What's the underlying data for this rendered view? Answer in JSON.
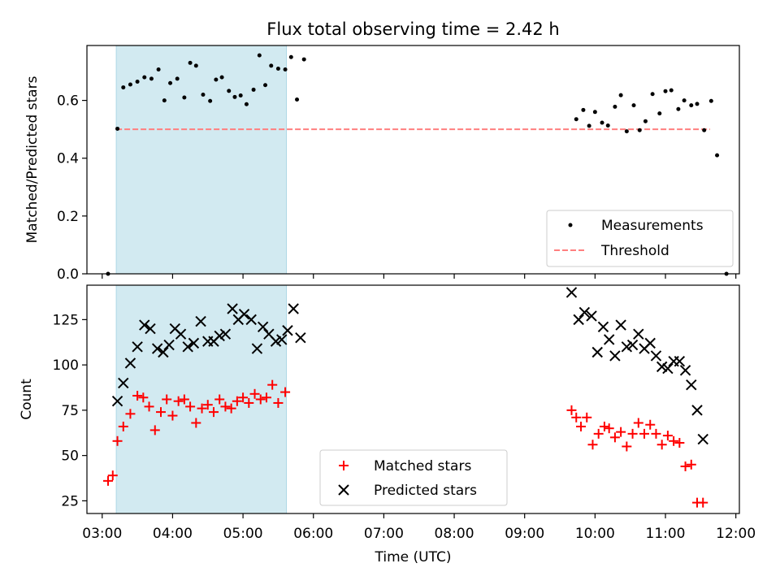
{
  "figure": {
    "title": "Flux total observing time = 2.42 h"
  },
  "colors": {
    "shade": "#add8e6",
    "measurements": "#000000",
    "threshold": "#ff7f7f",
    "matched": "#ff0000",
    "predicted": "#000000"
  },
  "chart_data": [
    {
      "type": "scatter",
      "ylabel": "Matched/Predicted stars",
      "xlim": [
        "02:47",
        "12:03"
      ],
      "ylim": [
        0,
        0.79
      ],
      "yticks": [
        "0.0",
        "0.2",
        "0.4",
        "0.6"
      ],
      "shaded_interval": [
        "03:12",
        "05:37"
      ],
      "legend": {
        "position": "lower right",
        "entries": [
          "Measurements",
          "Threshold"
        ]
      },
      "threshold": {
        "name": "Threshold",
        "value": 0.5,
        "x_start": "03:12",
        "x_end": "11:38"
      },
      "series": [
        {
          "name": "Measurements",
          "marker": "dot",
          "points": [
            [
              "03:05",
              0.0
            ],
            [
              "03:13",
              0.502
            ],
            [
              "03:18",
              0.645
            ],
            [
              "03:24",
              0.655
            ],
            [
              "03:30",
              0.665
            ],
            [
              "03:36",
              0.68
            ],
            [
              "03:42",
              0.675
            ],
            [
              "03:48",
              0.707
            ],
            [
              "03:53",
              0.6
            ],
            [
              "03:58",
              0.66
            ],
            [
              "04:04",
              0.675
            ],
            [
              "04:10",
              0.61
            ],
            [
              "04:15",
              0.73
            ],
            [
              "04:20",
              0.72
            ],
            [
              "04:26",
              0.62
            ],
            [
              "04:32",
              0.598
            ],
            [
              "04:37",
              0.672
            ],
            [
              "04:42",
              0.68
            ],
            [
              "04:48",
              0.633
            ],
            [
              "04:53",
              0.612
            ],
            [
              "04:58",
              0.617
            ],
            [
              "05:03",
              0.587
            ],
            [
              "05:09",
              0.637
            ],
            [
              "05:14",
              0.756
            ],
            [
              "05:19",
              0.653
            ],
            [
              "05:24",
              0.72
            ],
            [
              "05:30",
              0.71
            ],
            [
              "05:36",
              0.707
            ],
            [
              "05:41",
              0.75
            ],
            [
              "05:46",
              0.603
            ],
            [
              "05:52",
              0.742
            ],
            [
              "09:44",
              0.535
            ],
            [
              "09:50",
              0.567
            ],
            [
              "09:55",
              0.512
            ],
            [
              "10:00",
              0.56
            ],
            [
              "10:06",
              0.523
            ],
            [
              "10:11",
              0.513
            ],
            [
              "10:17",
              0.578
            ],
            [
              "10:22",
              0.618
            ],
            [
              "10:27",
              0.493
            ],
            [
              "10:33",
              0.583
            ],
            [
              "10:38",
              0.497
            ],
            [
              "10:43",
              0.528
            ],
            [
              "10:49",
              0.622
            ],
            [
              "10:55",
              0.555
            ],
            [
              "11:00",
              0.632
            ],
            [
              "11:05",
              0.635
            ],
            [
              "11:11",
              0.57
            ],
            [
              "11:16",
              0.6
            ],
            [
              "11:22",
              0.583
            ],
            [
              "11:27",
              0.588
            ],
            [
              "11:33",
              0.497
            ],
            [
              "11:39",
              0.598
            ],
            [
              "11:44",
              0.41
            ],
            [
              "11:52",
              0.0
            ]
          ]
        }
      ]
    },
    {
      "type": "scatter",
      "xlabel": "Time (UTC)",
      "ylabel": "Count",
      "xlim": [
        "02:47",
        "12:03"
      ],
      "ylim": [
        18,
        144
      ],
      "yticks": [
        "25",
        "50",
        "75",
        "100",
        "125"
      ],
      "xticks": [
        "03:00",
        "04:00",
        "05:00",
        "06:00",
        "07:00",
        "08:00",
        "09:00",
        "10:00",
        "11:00",
        "12:00"
      ],
      "shaded_interval": [
        "03:12",
        "05:37"
      ],
      "legend": {
        "position": "lower center",
        "entries": [
          "Matched stars",
          "Predicted stars"
        ]
      },
      "series": [
        {
          "name": "Matched stars",
          "marker": "plus",
          "points": [
            [
              "03:05",
              36
            ],
            [
              "03:09",
              39
            ],
            [
              "03:13",
              58
            ],
            [
              "03:18",
              66
            ],
            [
              "03:24",
              73
            ],
            [
              "03:30",
              83
            ],
            [
              "03:35",
              82
            ],
            [
              "03:40",
              77
            ],
            [
              "03:45",
              64
            ],
            [
              "03:50",
              74
            ],
            [
              "03:55",
              81
            ],
            [
              "04:00",
              72
            ],
            [
              "04:05",
              80
            ],
            [
              "04:10",
              81
            ],
            [
              "04:15",
              77
            ],
            [
              "04:20",
              68
            ],
            [
              "04:25",
              76
            ],
            [
              "04:30",
              78
            ],
            [
              "04:35",
              74
            ],
            [
              "04:40",
              81
            ],
            [
              "04:45",
              77
            ],
            [
              "04:50",
              76
            ],
            [
              "04:55",
              80
            ],
            [
              "05:00",
              82
            ],
            [
              "05:05",
              79
            ],
            [
              "05:10",
              84
            ],
            [
              "05:15",
              81
            ],
            [
              "05:20",
              82
            ],
            [
              "05:25",
              89
            ],
            [
              "05:30",
              79
            ],
            [
              "05:36",
              85
            ],
            [
              "09:40",
              75
            ],
            [
              "09:44",
              71
            ],
            [
              "09:48",
              66
            ],
            [
              "09:53",
              71
            ],
            [
              "09:58",
              56
            ],
            [
              "10:03",
              62
            ],
            [
              "10:08",
              66
            ],
            [
              "10:12",
              65
            ],
            [
              "10:17",
              60
            ],
            [
              "10:22",
              63
            ],
            [
              "10:27",
              55
            ],
            [
              "10:32",
              62
            ],
            [
              "10:37",
              68
            ],
            [
              "10:42",
              62
            ],
            [
              "10:47",
              67
            ],
            [
              "10:52",
              62
            ],
            [
              "10:57",
              56
            ],
            [
              "11:02",
              61
            ],
            [
              "11:07",
              58
            ],
            [
              "11:12",
              57
            ],
            [
              "11:17",
              44
            ],
            [
              "11:22",
              45
            ],
            [
              "11:27",
              24
            ],
            [
              "11:32",
              24
            ]
          ]
        },
        {
          "name": "Predicted stars",
          "marker": "x",
          "points": [
            [
              "03:13",
              80
            ],
            [
              "03:18",
              90
            ],
            [
              "03:24",
              101
            ],
            [
              "03:30",
              110
            ],
            [
              "03:36",
              122
            ],
            [
              "03:41",
              120
            ],
            [
              "03:47",
              109
            ],
            [
              "03:52",
              107
            ],
            [
              "03:57",
              111
            ],
            [
              "04:02",
              120
            ],
            [
              "04:07",
              117
            ],
            [
              "04:13",
              110
            ],
            [
              "04:18",
              112
            ],
            [
              "04:24",
              124
            ],
            [
              "04:30",
              113
            ],
            [
              "04:35",
              113
            ],
            [
              "04:40",
              116
            ],
            [
              "04:45",
              117
            ],
            [
              "04:51",
              131
            ],
            [
              "04:56",
              125
            ],
            [
              "05:01",
              128
            ],
            [
              "05:07",
              125
            ],
            [
              "05:12",
              109
            ],
            [
              "05:17",
              121
            ],
            [
              "05:22",
              117
            ],
            [
              "05:28",
              113
            ],
            [
              "05:33",
              114
            ],
            [
              "05:38",
              119
            ],
            [
              "05:43",
              131
            ],
            [
              "05:49",
              115
            ],
            [
              "09:40",
              140
            ],
            [
              "09:46",
              125
            ],
            [
              "09:51",
              129
            ],
            [
              "09:57",
              127
            ],
            [
              "10:02",
              107
            ],
            [
              "10:07",
              121
            ],
            [
              "10:12",
              114
            ],
            [
              "10:17",
              105
            ],
            [
              "10:22",
              122
            ],
            [
              "10:27",
              110
            ],
            [
              "10:32",
              111
            ],
            [
              "10:37",
              117
            ],
            [
              "10:42",
              109
            ],
            [
              "10:47",
              112
            ],
            [
              "10:52",
              105
            ],
            [
              "10:57",
              99
            ],
            [
              "11:02",
              98
            ],
            [
              "11:07",
              102
            ],
            [
              "11:12",
              102
            ],
            [
              "11:17",
              97
            ],
            [
              "11:22",
              89
            ],
            [
              "11:27",
              75
            ],
            [
              "11:32",
              59
            ]
          ]
        }
      ]
    }
  ]
}
